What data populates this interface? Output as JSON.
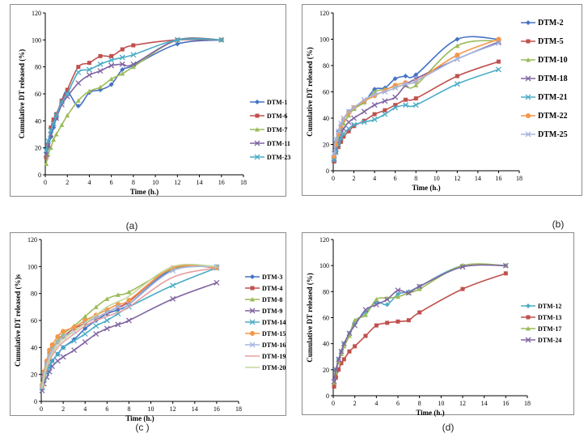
{
  "captions": [
    "(a)",
    "(b)",
    "(c )",
    "(d)"
  ],
  "chart_data": [
    {
      "type": "line",
      "ylabel": "Cumulative DT released (%)",
      "xlabel": "Time (h.)",
      "xlim": [
        0,
        18
      ],
      "ylim": [
        0,
        120
      ],
      "xticks": [
        0,
        2,
        4,
        6,
        8,
        10,
        12,
        14,
        16,
        18
      ],
      "yticks": [
        0,
        20,
        40,
        60,
        80,
        100,
        120
      ],
      "legend": "right",
      "series": [
        {
          "name": "DTM-1",
          "color": "#4472c4",
          "marker": "diamond",
          "x": [
            0.083,
            0.25,
            0.5,
            0.75,
            1,
            1.5,
            2,
            3,
            4,
            5,
            6,
            7,
            8,
            12,
            16
          ],
          "y": [
            12,
            20,
            28,
            35,
            42,
            55,
            62,
            51,
            61,
            63,
            67,
            78,
            81,
            97,
            100
          ]
        },
        {
          "name": "DTM-6",
          "color": "#c0504d",
          "marker": "square",
          "x": [
            0.083,
            0.25,
            0.5,
            0.75,
            1,
            1.5,
            2,
            3,
            4,
            5,
            6,
            7,
            8,
            12,
            16
          ],
          "y": [
            13,
            22,
            35,
            41,
            45,
            55,
            63,
            80,
            83,
            88,
            88,
            93,
            96,
            100,
            100
          ]
        },
        {
          "name": "DTM-7",
          "color": "#9bbb59",
          "marker": "triangle",
          "x": [
            0.083,
            0.25,
            0.5,
            0.75,
            1,
            1.5,
            2,
            3,
            4,
            5,
            6,
            7,
            8,
            12,
            16
          ],
          "y": [
            8,
            15,
            20,
            26,
            30,
            37,
            44,
            55,
            62,
            65,
            71,
            75,
            80,
            100,
            100
          ]
        },
        {
          "name": "DTM-11",
          "color": "#8064a2",
          "marker": "x",
          "x": [
            0.083,
            0.25,
            0.5,
            0.75,
            1,
            1.5,
            2,
            3,
            4,
            5,
            6,
            7,
            8,
            12,
            16
          ],
          "y": [
            15,
            22,
            30,
            38,
            42,
            52,
            58,
            68,
            74,
            77,
            81,
            82,
            82,
            100,
            100
          ]
        },
        {
          "name": "DTM-23",
          "color": "#4bacc6",
          "marker": "x",
          "x": [
            0.083,
            0.25,
            0.5,
            0.75,
            1,
            1.5,
            2,
            3,
            4,
            5,
            6,
            7,
            8,
            12,
            16
          ],
          "y": [
            18,
            25,
            33,
            38,
            44,
            54,
            60,
            76,
            78,
            82,
            85,
            87,
            89,
            100,
            100
          ]
        }
      ]
    },
    {
      "type": "line",
      "ylabel": "Cumulative DT released (%)",
      "xlabel": "Time (h.)",
      "xlim": [
        0,
        18
      ],
      "ylim": [
        0,
        120
      ],
      "xticks": [
        0,
        2,
        4,
        6,
        8,
        10,
        12,
        14,
        16,
        18
      ],
      "yticks": [
        0,
        20,
        40,
        60,
        80,
        100,
        120
      ],
      "legend": "right",
      "series": [
        {
          "name": "DTM-2",
          "color": "#4472c4",
          "marker": "diamond",
          "x": [
            0.083,
            0.25,
            0.5,
            0.75,
            1,
            1.5,
            2,
            3,
            4,
            5,
            6,
            7,
            8,
            12,
            16
          ],
          "y": [
            12,
            22,
            30,
            35,
            39,
            45,
            48,
            52,
            62,
            63,
            70,
            72,
            73,
            100,
            100
          ]
        },
        {
          "name": "DTM-5",
          "color": "#c0504d",
          "marker": "square",
          "x": [
            0.083,
            0.25,
            0.5,
            0.75,
            1,
            1.5,
            2,
            3,
            4,
            5,
            6,
            7,
            8,
            12,
            16
          ],
          "y": [
            7,
            14,
            18,
            22,
            26,
            30,
            34,
            38,
            43,
            46,
            50,
            54,
            55,
            72,
            83
          ]
        },
        {
          "name": "DTM-10",
          "color": "#9bbb59",
          "marker": "triangle",
          "x": [
            0.083,
            0.25,
            0.5,
            0.75,
            1,
            1.5,
            2,
            3,
            4,
            5,
            6,
            7,
            8,
            12,
            16
          ],
          "y": [
            10,
            18,
            26,
            32,
            36,
            42,
            47,
            52,
            60,
            62,
            64,
            65,
            65,
            95,
            99
          ]
        },
        {
          "name": "DTM-18",
          "color": "#8064a2",
          "marker": "x",
          "x": [
            0.083,
            0.25,
            0.5,
            0.75,
            1,
            1.5,
            2,
            3,
            4,
            5,
            6,
            7,
            8,
            12,
            16
          ],
          "y": [
            9,
            16,
            22,
            28,
            32,
            37,
            40,
            45,
            50,
            53,
            56,
            65,
            70,
            85,
            98
          ]
        },
        {
          "name": "DTM-21",
          "color": "#4bacc6",
          "marker": "x",
          "x": [
            0.083,
            0.25,
            0.5,
            0.75,
            1,
            1.5,
            2,
            3,
            4,
            5,
            6,
            7,
            8,
            12,
            16
          ],
          "y": [
            8,
            14,
            20,
            25,
            28,
            32,
            35,
            37,
            39,
            43,
            48,
            50,
            50,
            66,
            77
          ]
        },
        {
          "name": "DTM-22",
          "color": "#f79646",
          "marker": "circle",
          "x": [
            0.083,
            0.25,
            0.5,
            0.75,
            1,
            1.5,
            2,
            3,
            4,
            5,
            6,
            7,
            8,
            12,
            16
          ],
          "y": [
            11,
            20,
            28,
            34,
            39,
            44,
            48,
            53,
            57,
            61,
            65,
            67,
            68,
            88,
            100
          ]
        },
        {
          "name": "DTM-25",
          "color": "#a5b6e0",
          "marker": "x",
          "x": [
            0.083,
            0.25,
            0.5,
            0.75,
            1,
            1.5,
            2,
            3,
            4,
            5,
            6,
            7,
            8,
            12,
            16
          ],
          "y": [
            13,
            24,
            30,
            36,
            40,
            45,
            48,
            54,
            58,
            60,
            63,
            66,
            68,
            85,
            97
          ]
        }
      ]
    },
    {
      "type": "line",
      "ylabel": "Cumulative DT released (%)s",
      "xlabel": "Time (h.)",
      "xlim": [
        0,
        18
      ],
      "ylim": [
        0,
        120
      ],
      "xticks": [
        0,
        2,
        4,
        6,
        8,
        10,
        12,
        14,
        16,
        18
      ],
      "yticks": [
        0,
        20,
        40,
        60,
        80,
        100,
        120
      ],
      "legend": "right",
      "series": [
        {
          "name": "DTM-3",
          "color": "#4472c4",
          "marker": "diamond",
          "x": [
            0.083,
            0.25,
            0.5,
            0.75,
            1,
            1.5,
            2,
            3,
            4,
            5,
            6,
            7,
            8,
            12,
            16
          ],
          "y": [
            10,
            16,
            22,
            26,
            30,
            35,
            40,
            46,
            54,
            60,
            65,
            68,
            72,
            98,
            100
          ]
        },
        {
          "name": "DTM-4",
          "color": "#c0504d",
          "marker": "square",
          "x": [
            0.083,
            0.25,
            0.5,
            0.75,
            1,
            1.5,
            2,
            3,
            4,
            5,
            6,
            7,
            8,
            12,
            16
          ],
          "y": [
            12,
            20,
            28,
            36,
            40,
            44,
            48,
            54,
            58,
            62,
            66,
            70,
            74,
            99,
            99
          ]
        },
        {
          "name": "DTM-8",
          "color": "#9bbb59",
          "marker": "triangle",
          "x": [
            0.083,
            0.25,
            0.5,
            0.75,
            1,
            1.5,
            2,
            3,
            4,
            5,
            6,
            7,
            8,
            12,
            16
          ],
          "y": [
            14,
            22,
            30,
            36,
            40,
            45,
            50,
            56,
            63,
            70,
            76,
            79,
            81,
            98,
            100
          ]
        },
        {
          "name": "DTM-9",
          "color": "#8064a2",
          "marker": "x",
          "x": [
            0.083,
            0.25,
            0.5,
            0.75,
            1,
            1.5,
            2,
            3,
            4,
            5,
            6,
            7,
            8,
            12,
            16
          ],
          "y": [
            8,
            13,
            18,
            22,
            26,
            30,
            33,
            38,
            44,
            50,
            54,
            57,
            60,
            76,
            88
          ]
        },
        {
          "name": "DTM-14",
          "color": "#4bacc6",
          "marker": "x",
          "x": [
            0.083,
            0.25,
            0.5,
            0.75,
            1,
            1.5,
            2,
            3,
            4,
            5,
            6,
            7,
            8,
            12,
            16
          ],
          "y": [
            10,
            16,
            22,
            26,
            30,
            35,
            40,
            45,
            50,
            56,
            60,
            65,
            70,
            86,
            99
          ]
        },
        {
          "name": "DTM-15",
          "color": "#f79646",
          "marker": "circle",
          "x": [
            0.083,
            0.25,
            0.5,
            0.75,
            1,
            1.5,
            2,
            3,
            4,
            5,
            6,
            7,
            8,
            12,
            16
          ],
          "y": [
            12,
            22,
            30,
            38,
            42,
            48,
            52,
            55,
            60,
            64,
            68,
            72,
            75,
            99,
            99
          ]
        },
        {
          "name": "DTM-16",
          "color": "#a5b6e0",
          "marker": "x",
          "x": [
            0.083,
            0.25,
            0.5,
            0.75,
            1,
            1.5,
            2,
            3,
            4,
            5,
            6,
            7,
            8,
            12,
            16
          ],
          "y": [
            11,
            20,
            28,
            34,
            38,
            44,
            48,
            52,
            58,
            62,
            66,
            70,
            72,
            97,
            100
          ]
        },
        {
          "name": "DTM-19",
          "color": "#e6a0a0",
          "marker": "none",
          "x": [
            0.083,
            0.25,
            0.5,
            0.75,
            1,
            1.5,
            2,
            3,
            4,
            5,
            6,
            7,
            8,
            12,
            16
          ],
          "y": [
            9,
            16,
            24,
            30,
            34,
            40,
            44,
            50,
            56,
            60,
            63,
            66,
            70,
            92,
            99
          ]
        },
        {
          "name": "DTM-20",
          "color": "#c4d79b",
          "marker": "none",
          "x": [
            0.083,
            0.25,
            0.5,
            0.75,
            1,
            1.5,
            2,
            3,
            4,
            5,
            6,
            7,
            8,
            12,
            16
          ],
          "y": [
            10,
            18,
            26,
            32,
            36,
            42,
            46,
            52,
            58,
            64,
            70,
            74,
            78,
            100,
            100
          ]
        }
      ]
    },
    {
      "type": "line",
      "ylabel": "Cumulative DT released (%)",
      "xlabel": "Time (h.)",
      "xlim": [
        0,
        18
      ],
      "ylim": [
        0,
        120
      ],
      "xticks": [
        0,
        2,
        4,
        6,
        8,
        10,
        12,
        14,
        16,
        18
      ],
      "yticks": [
        0,
        20,
        40,
        60,
        80,
        100,
        120
      ],
      "legend": "right",
      "series": [
        {
          "name": "DTM-12",
          "color": "#4bacc6",
          "marker": "diamond",
          "x": [
            0.083,
            0.25,
            0.5,
            0.75,
            1,
            1.5,
            2,
            3,
            4,
            5,
            6,
            7,
            8,
            12,
            16
          ],
          "y": [
            12,
            20,
            28,
            34,
            40,
            48,
            56,
            64,
            72,
            70,
            78,
            80,
            84,
            100,
            100
          ]
        },
        {
          "name": "DTM-13",
          "color": "#c0504d",
          "marker": "square",
          "x": [
            0.083,
            0.25,
            0.5,
            0.75,
            1,
            1.5,
            2,
            3,
            4,
            5,
            6,
            7,
            8,
            12,
            16
          ],
          "y": [
            7,
            14,
            20,
            25,
            28,
            34,
            38,
            46,
            54,
            56,
            57,
            58,
            64,
            82,
            94
          ]
        },
        {
          "name": "DTM-17",
          "color": "#9bbb59",
          "marker": "triangle",
          "x": [
            0.083,
            0.25,
            0.5,
            0.75,
            1,
            1.5,
            2,
            3,
            4,
            5,
            6,
            7,
            8,
            12,
            16
          ],
          "y": [
            10,
            18,
            26,
            32,
            38,
            46,
            58,
            62,
            74,
            75,
            76,
            79,
            82,
            100,
            100
          ]
        },
        {
          "name": "DTM-24",
          "color": "#8064a2",
          "marker": "x",
          "x": [
            0.083,
            0.25,
            0.5,
            0.75,
            1,
            1.5,
            2,
            3,
            4,
            5,
            6,
            7,
            8,
            12,
            16
          ],
          "y": [
            11,
            20,
            28,
            34,
            40,
            48,
            54,
            66,
            70,
            74,
            81,
            79,
            84,
            99,
            100
          ]
        }
      ]
    }
  ]
}
